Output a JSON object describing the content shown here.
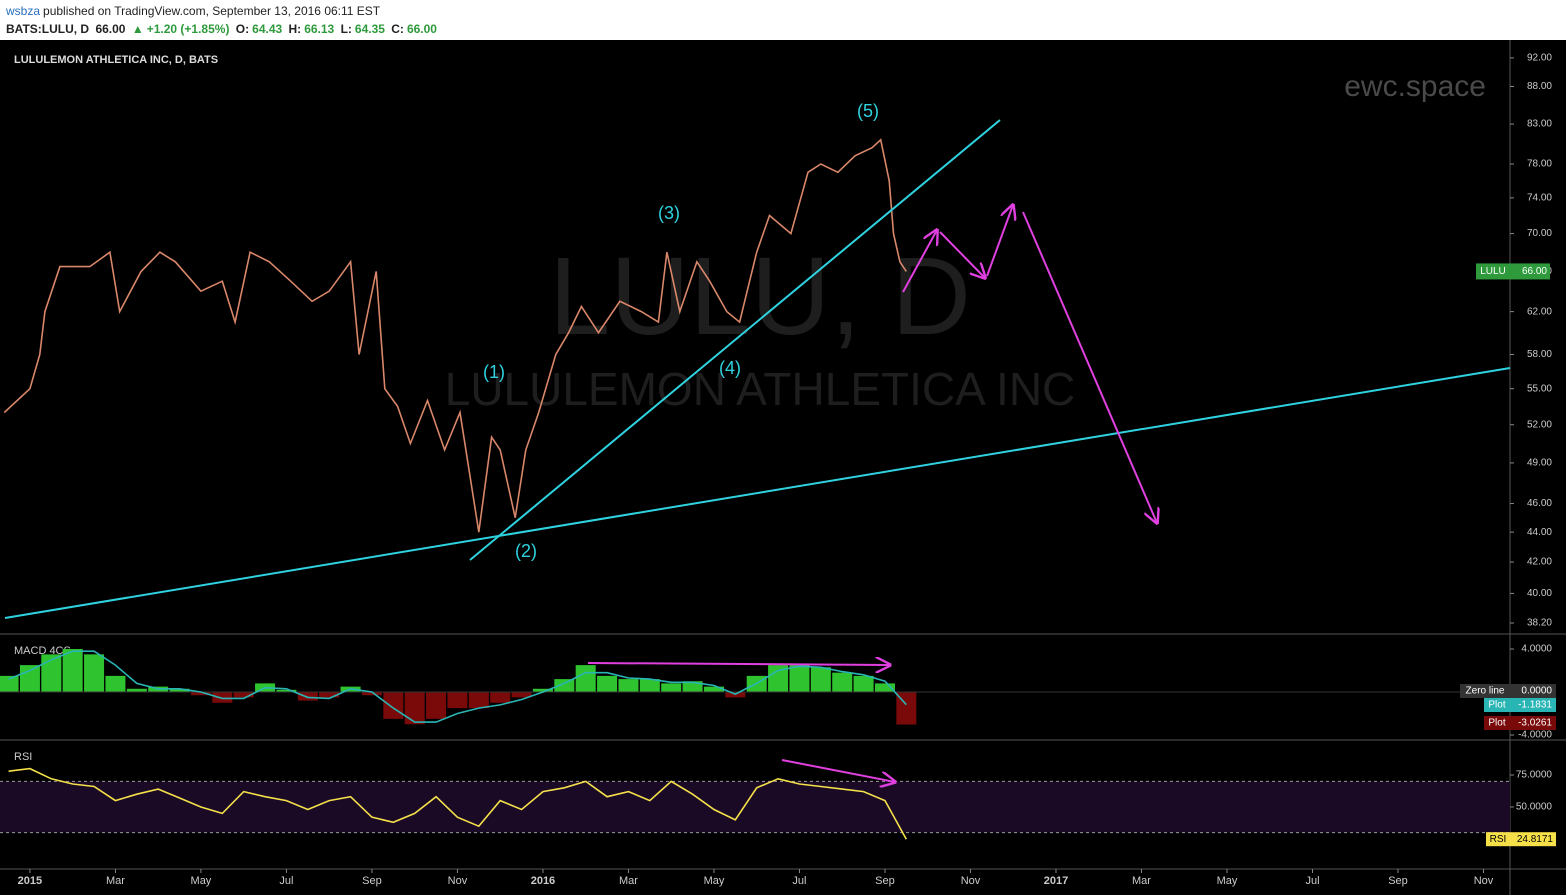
{
  "header": {
    "user": "wsbza",
    "published": "published on TradingView.com, September 13, 2016 06:11 EST",
    "symbol": "BATS:LULU, D",
    "last": "66.00",
    "change": "+1.20 (+1.85%)",
    "open_label": "O:",
    "open": "64.43",
    "high_label": "H:",
    "high": "66.13",
    "low_label": "L:",
    "low": "64.35",
    "close_label": "C:",
    "close": "66.00"
  },
  "chart_data": [
    {
      "type": "line",
      "title": "LULULEMON ATHLETICA INC, D, BATS",
      "watermark": "LULU, D",
      "watermark_sub": "LULULEMON ATHLETICA INC",
      "brand": "ewc.space",
      "waves": [
        "(1)",
        "(2)",
        "(3)",
        "(4)",
        "(5)"
      ],
      "log": true,
      "xlim": [
        -0.7,
        34.62
      ],
      "ylim": [
        37.67,
        94.3
      ],
      "xticks": [
        {
          "value": 0,
          "label": "2015"
        },
        {
          "value": 2,
          "label": "Mar"
        },
        {
          "value": 4,
          "label": "May"
        },
        {
          "value": 6,
          "label": "Jul"
        },
        {
          "value": 8,
          "label": "Sep"
        },
        {
          "value": 10,
          "label": "Nov"
        },
        {
          "value": 12,
          "label": "2016"
        },
        {
          "value": 14,
          "label": "Mar"
        },
        {
          "value": 16,
          "label": "May"
        },
        {
          "value": 18,
          "label": "Jul"
        },
        {
          "value": 20,
          "label": "Sep"
        },
        {
          "value": 22,
          "label": "Nov"
        },
        {
          "value": 24,
          "label": "2017"
        },
        {
          "value": 26,
          "label": "Mar"
        },
        {
          "value": 28,
          "label": "May"
        },
        {
          "value": 30,
          "label": "Jul"
        },
        {
          "value": 32,
          "label": "Sep"
        },
        {
          "value": 34,
          "label": "Nov"
        }
      ],
      "yticks": [
        {
          "value": 92,
          "label": "92.00"
        },
        {
          "value": 88,
          "label": "88.00"
        },
        {
          "value": 83,
          "label": "83.00"
        },
        {
          "value": 78,
          "label": "78.00"
        },
        {
          "value": 74,
          "label": "74.00"
        },
        {
          "value": 70,
          "label": "70.00"
        },
        {
          "value": 66,
          "label": "66.00"
        },
        {
          "value": 62,
          "label": "62.00"
        },
        {
          "value": 58,
          "label": "58.00"
        },
        {
          "value": 55,
          "label": "55.00"
        },
        {
          "value": 52,
          "label": "52.00"
        },
        {
          "value": 49,
          "label": "49.00"
        },
        {
          "value": 46,
          "label": "46.00"
        },
        {
          "value": 44,
          "label": "44.00"
        },
        {
          "value": 42,
          "label": "42.00"
        },
        {
          "value": 40,
          "label": "40.00"
        },
        {
          "value": 38.2,
          "label": "38.20"
        }
      ],
      "x": [
        -0.6,
        0,
        0.23,
        0.35,
        0.7,
        1.4,
        1.87,
        2.1,
        2.6,
        3.04,
        3.4,
        4.0,
        4.5,
        4.8,
        5.15,
        5.6,
        6.1,
        6.6,
        7.0,
        7.5,
        7.7,
        8.1,
        8.3,
        8.6,
        8.9,
        9.3,
        9.7,
        10.06,
        10.5,
        10.8,
        11.0,
        11.35,
        11.6,
        11.9,
        12.3,
        12.6,
        12.9,
        13.3,
        13.8,
        14.3,
        14.7,
        14.9,
        15.2,
        15.6,
        15.9,
        16.3,
        16.6,
        17.0,
        17.3,
        17.8,
        18.2,
        18.5,
        18.9,
        19.3,
        19.7,
        19.9,
        20.1,
        20.2,
        20.35,
        20.5
      ],
      "series": [
        {
          "name": "LULU",
          "color": "#d9876a",
          "values": [
            53,
            55,
            58,
            62,
            66.5,
            66.5,
            68,
            62,
            66,
            68,
            67,
            64,
            65,
            61,
            68,
            67,
            65,
            63,
            64,
            67,
            58,
            66,
            55,
            53.5,
            50.5,
            54,
            50,
            53,
            44,
            51,
            50,
            45,
            50,
            53,
            58,
            60,
            62.5,
            60,
            63,
            62,
            61,
            68,
            62,
            67,
            65,
            62,
            61,
            68,
            72,
            70,
            77,
            78,
            77,
            79,
            80,
            81,
            76,
            70,
            67,
            66
          ],
          "current": {
            "value": 66,
            "label": "66.00"
          },
          "tag_color": "#2e9a3c"
        }
      ]
    },
    {
      "type": "macd",
      "title": "MACD 4CS",
      "xlim": [
        -0.7,
        34.62
      ],
      "ylim": [
        -4.28,
        5.21
      ],
      "yticks": [
        {
          "value": 4,
          "label": "4.0000"
        },
        {
          "value": -4,
          "label": "-4.0000"
        }
      ],
      "zero_line": {
        "name": "Zero line",
        "value": 0,
        "label": "0.0000"
      },
      "x": [
        -0.5,
        0,
        0.5,
        1,
        1.5,
        2,
        2.5,
        3,
        3.5,
        4,
        4.5,
        5,
        5.5,
        6,
        6.5,
        7,
        7.5,
        8,
        8.5,
        9,
        9.5,
        10,
        10.5,
        11,
        11.5,
        12,
        12.5,
        13,
        13.5,
        14,
        14.5,
        15,
        15.5,
        16,
        16.5,
        17,
        17.5,
        18,
        18.5,
        19,
        19.5,
        20,
        20.5
      ],
      "series": [
        {
          "name": "Plot",
          "color": "#2ab5b5",
          "values": [
            1.2,
            2,
            3,
            3.8,
            3.8,
            2.5,
            0.8,
            0.3,
            0.3,
            0,
            -0.6,
            -0.6,
            0.4,
            0.3,
            -0.5,
            -0.6,
            0.3,
            0,
            -1.5,
            -2.8,
            -2.8,
            -2,
            -1.5,
            -1.2,
            -0.7,
            0,
            0.8,
            1.8,
            1.8,
            1.3,
            1.2,
            0.9,
            0.9,
            0.6,
            -0.2,
            0.8,
            2,
            2.4,
            2.3,
            1.9,
            1.6,
            1,
            -1.1831
          ],
          "current": {
            "value": -1.1831,
            "label": "-1.1831"
          }
        },
        {
          "name": "Plot",
          "color": "#2fc42f",
          "down_color": "#7a0a0a",
          "values": [
            1.5,
            2.5,
            3.5,
            4,
            3.5,
            1.5,
            0.3,
            0.5,
            0.3,
            -0.3,
            -1,
            -0.5,
            0.8,
            0.2,
            -0.8,
            -0.5,
            0.5,
            -0.3,
            -2.5,
            -3,
            -2.5,
            -1.5,
            -1.5,
            -1,
            -0.5,
            0.3,
            1.2,
            2.5,
            1.5,
            1.2,
            1.2,
            0.8,
            1,
            0.5,
            -0.5,
            1.5,
            2.5,
            2.5,
            2.3,
            1.8,
            1.5,
            0.8,
            -3.0261
          ],
          "current": {
            "value": -3.0261,
            "label": "-3.0261"
          }
        }
      ]
    },
    {
      "type": "rsi",
      "title": "RSI",
      "xlim": [
        -0.7,
        34.62
      ],
      "ylim": [
        2.3,
        100.8
      ],
      "band": [
        30,
        70
      ],
      "yticks": [
        {
          "value": 75,
          "label": "75.0000"
        },
        {
          "value": 50,
          "label": "50.0000"
        }
      ],
      "x": [
        -0.5,
        0,
        0.5,
        1,
        1.5,
        2,
        2.5,
        3,
        3.5,
        4,
        4.5,
        5,
        5.5,
        6,
        6.5,
        7,
        7.5,
        8,
        8.5,
        9,
        9.5,
        10,
        10.5,
        11,
        11.5,
        12,
        12.5,
        13,
        13.5,
        14,
        14.5,
        15,
        15.5,
        16,
        16.5,
        17,
        17.5,
        18,
        18.5,
        19,
        19.5,
        20,
        20.5
      ],
      "series": [
        {
          "name": "RSI",
          "color": "#f5e04a",
          "values": [
            78,
            80,
            72,
            68,
            66,
            55,
            60,
            64,
            57,
            50,
            45,
            62,
            58,
            55,
            48,
            55,
            58,
            42,
            38,
            45,
            58,
            42,
            35,
            55,
            48,
            62,
            65,
            70,
            58,
            62,
            55,
            70,
            60,
            48,
            40,
            65,
            72,
            68,
            66,
            64,
            62,
            55,
            24.8171
          ],
          "current": {
            "value": 24.8171,
            "label": "24.8171"
          }
        }
      ]
    }
  ]
}
